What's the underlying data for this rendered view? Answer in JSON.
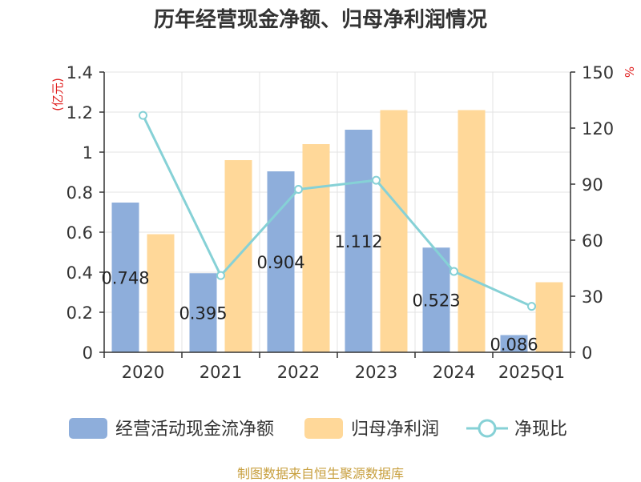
{
  "chart_data": {
    "type": "bar",
    "title": "历年经营现金净额、归母净利润情况",
    "categories": [
      "2020",
      "2021",
      "2022",
      "2023",
      "2024",
      "2025Q1"
    ],
    "series": [
      {
        "name": "经营活动现金流净额",
        "type": "bar",
        "axis": "left",
        "color": "#8eaedb",
        "values": [
          0.748,
          0.395,
          0.904,
          1.112,
          0.523,
          0.086
        ],
        "labels": [
          "0.748",
          "0.395",
          "0.904",
          "1.112",
          "0.523",
          "0.086"
        ]
      },
      {
        "name": "归母净利润",
        "type": "bar",
        "axis": "left",
        "color": "#ffd899",
        "values": [
          0.59,
          0.96,
          1.04,
          1.21,
          1.21,
          0.35
        ]
      },
      {
        "name": "净现比",
        "type": "line",
        "axis": "right",
        "color": "#86d1d6",
        "values": [
          126.8,
          41.1,
          87.2,
          92.1,
          43.3,
          24.6
        ]
      }
    ],
    "left_axis": {
      "unit": "(亿元)",
      "min": 0,
      "max": 1.4,
      "ticks": [
        0,
        0.2,
        0.4,
        0.6,
        0.8,
        1,
        1.2,
        1.4
      ],
      "tick_labels": [
        "0",
        "0.2",
        "0.4",
        "0.6",
        "0.8",
        "1",
        "1.2",
        "1.4"
      ]
    },
    "right_axis": {
      "unit": "%",
      "min": 0,
      "max": 150,
      "ticks": [
        0,
        30,
        60,
        90,
        120,
        150
      ],
      "tick_labels": [
        "0",
        "30",
        "60",
        "90",
        "120",
        "150"
      ]
    },
    "grid": true,
    "legend_position": "bottom"
  },
  "source": "制图数据来自恒生聚源数据库"
}
